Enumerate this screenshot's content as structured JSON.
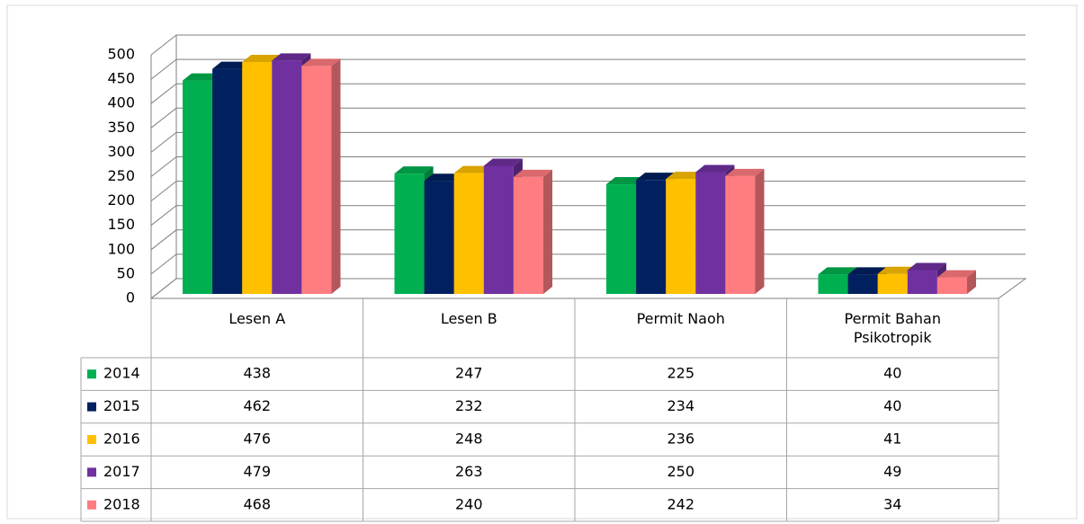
{
  "chart_data": {
    "type": "bar3d",
    "categories": [
      "Lesen A",
      "Lesen B",
      "Permit Naoh",
      "Permit Bahan Psikotropik"
    ],
    "series": [
      {
        "name": "2014",
        "color": "#00b050",
        "values": [
          438,
          247,
          225,
          40
        ]
      },
      {
        "name": "2015",
        "color": "#002060",
        "values": [
          462,
          232,
          234,
          40
        ]
      },
      {
        "name": "2016",
        "color": "#ffc000",
        "values": [
          476,
          248,
          236,
          41
        ]
      },
      {
        "name": "2017",
        "color": "#7030a0",
        "values": [
          479,
          263,
          250,
          49
        ]
      },
      {
        "name": "2018",
        "color": "#ff7c80",
        "values": [
          468,
          240,
          242,
          34
        ]
      }
    ],
    "ylim": [
      0,
      500
    ],
    "yticks": [
      0,
      50,
      100,
      150,
      200,
      250,
      300,
      350,
      400,
      450,
      500
    ],
    "grid": true,
    "data_table": true
  }
}
